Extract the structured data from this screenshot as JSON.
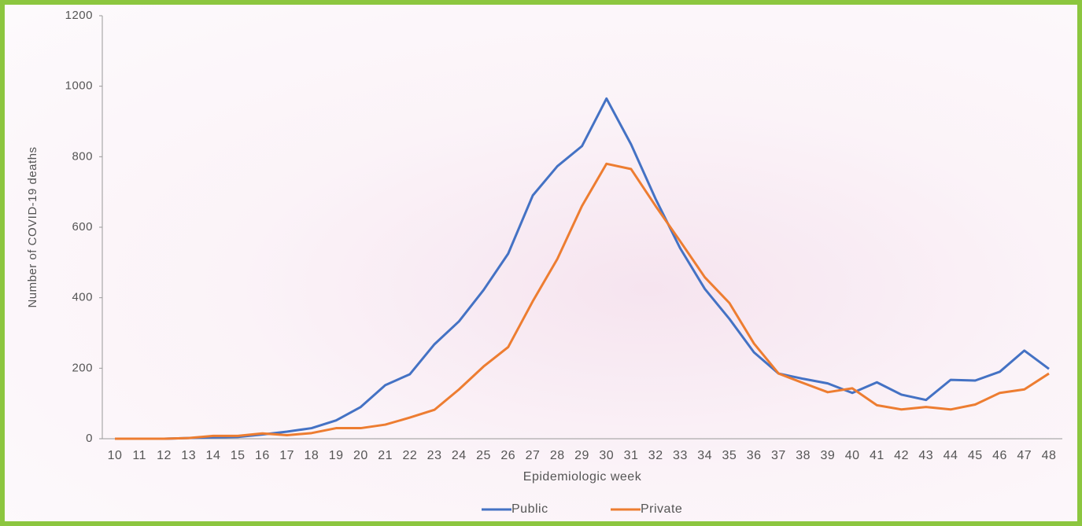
{
  "chart_data": {
    "type": "line",
    "x_label": "Epidemiologic week",
    "y_label": "Number of COVID-19 deaths",
    "categories": [
      "10",
      "11",
      "12",
      "13",
      "14",
      "15",
      "16",
      "17",
      "18",
      "19",
      "20",
      "21",
      "22",
      "23",
      "24",
      "25",
      "26",
      "27",
      "28",
      "29",
      "30",
      "31",
      "32",
      "33",
      "34",
      "35",
      "36",
      "37",
      "38",
      "39",
      "40",
      "41",
      "42",
      "43",
      "44",
      "45",
      "46",
      "47",
      "48"
    ],
    "series": [
      {
        "name": "Public",
        "color": "#4472c4",
        "values": [
          0,
          0,
          0,
          2,
          4,
          5,
          12,
          20,
          30,
          52,
          90,
          152,
          183,
          268,
          333,
          422,
          525,
          690,
          773,
          830,
          965,
          835,
          680,
          540,
          425,
          340,
          245,
          185,
          170,
          157,
          130,
          160,
          125,
          110,
          167,
          165,
          190,
          250,
          198
        ]
      },
      {
        "name": "Private",
        "color": "#ed7d31",
        "values": [
          0,
          0,
          0,
          2,
          8,
          8,
          15,
          10,
          16,
          30,
          30,
          40,
          60,
          82,
          140,
          205,
          260,
          390,
          510,
          660,
          780,
          765,
          660,
          560,
          458,
          385,
          270,
          185,
          158,
          132,
          143,
          95,
          83,
          90,
          83,
          97,
          130,
          140,
          185
        ]
      }
    ],
    "ylim": [
      0,
      1200
    ],
    "yticks": [
      0,
      200,
      400,
      600,
      800,
      1000,
      1200
    ],
    "legend": "bottom"
  }
}
